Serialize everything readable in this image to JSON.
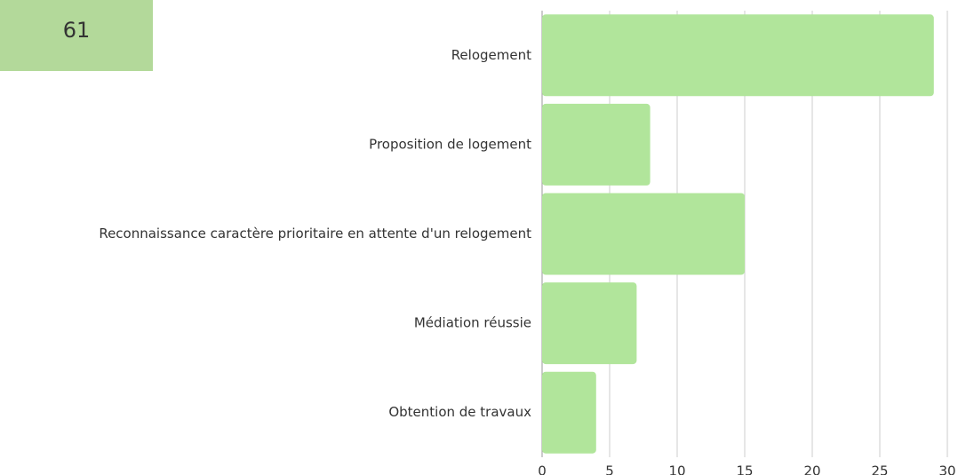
{
  "kpi": {
    "value": 61
  },
  "chart_data": {
    "type": "hbar",
    "categories": [
      "Relogement",
      "Proposition de logement",
      "Reconnaissance caractère prioritaire en attente d'un relogement",
      "Médiation réussie",
      "Obtention de travaux"
    ],
    "values": [
      29,
      8,
      15,
      7,
      4
    ],
    "color": "#b1e59b",
    "xlim": [
      0,
      30
    ],
    "xticks": [
      0,
      5,
      10,
      15,
      20,
      25,
      30
    ],
    "grid": true
  }
}
